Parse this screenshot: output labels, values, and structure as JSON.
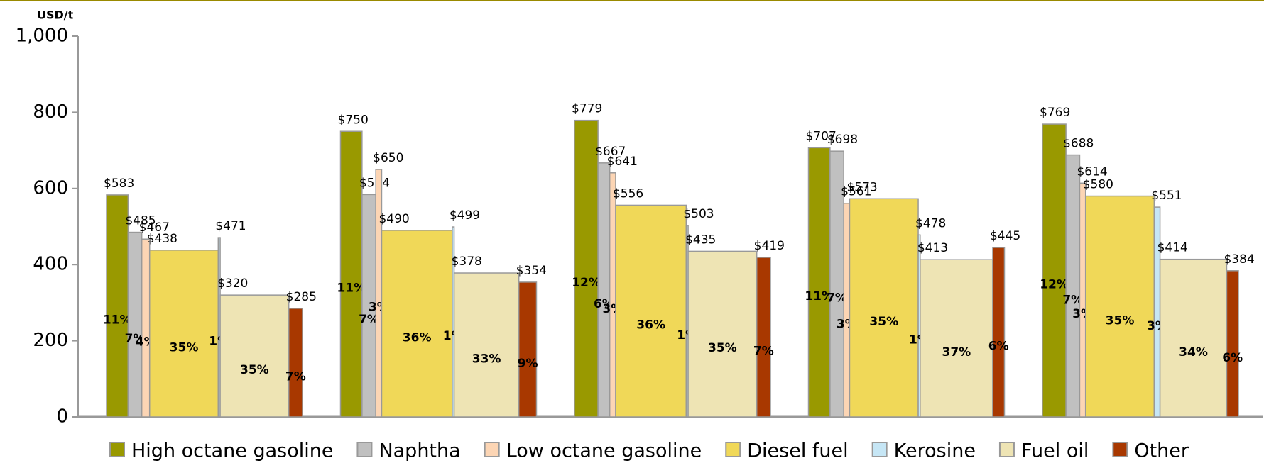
{
  "chart_data": {
    "type": "variable_width_bar",
    "y_label": "USD/t",
    "categories": [
      null,
      null,
      null,
      null,
      null
    ],
    "ylim": [
      0,
      1000
    ],
    "yticks": [
      0,
      200,
      400,
      600,
      800,
      {
        "value": 1000,
        "label": "1,000"
      }
    ],
    "series": [
      {
        "name": "High octane gasoline",
        "color": "#999900",
        "values": [
          583,
          750,
          779,
          707,
          769
        ],
        "value_labels": [
          "$583",
          "$750",
          "$779",
          "$707",
          "$769"
        ],
        "shares": [
          11,
          11,
          12,
          11,
          12
        ],
        "share_labels": [
          "11%",
          "11%",
          "12%",
          "11%",
          "12%"
        ]
      },
      {
        "name": "Naphtha",
        "color": "#c0c0c0",
        "values": [
          485,
          584,
          667,
          698,
          688
        ],
        "value_labels": [
          "$485",
          "$584",
          "$667",
          "$698",
          "$688"
        ],
        "shares": [
          7,
          7,
          6,
          7,
          7
        ],
        "share_labels": [
          "7%",
          "7%",
          "6%",
          "7%",
          "7%"
        ]
      },
      {
        "name": "Low octane gasoline",
        "color": "#fcd5b4",
        "values": [
          467,
          650,
          641,
          561,
          614
        ],
        "value_labels": [
          "$467",
          "$650",
          "$641",
          "$561",
          "$614"
        ],
        "shares": [
          4,
          3,
          3,
          3,
          3
        ],
        "share_labels": [
          "4%",
          "3%",
          "3%",
          "3%",
          "3%"
        ]
      },
      {
        "name": "Diesel fuel",
        "color": "#f0d858",
        "values": [
          438,
          490,
          556,
          573,
          580
        ],
        "value_labels": [
          "$438",
          "$490",
          "$556",
          "$573",
          "$580"
        ],
        "shares": [
          35,
          36,
          36,
          35,
          35
        ],
        "share_labels": [
          "35%",
          "36%",
          "36%",
          "35%",
          "35%"
        ]
      },
      {
        "name": "Kerosine",
        "color": "#c6e6f5",
        "values": [
          471,
          499,
          503,
          478,
          551
        ],
        "value_labels": [
          "$471",
          "$499",
          "$503",
          "$478",
          "$551"
        ],
        "shares": [
          1,
          1,
          1,
          1,
          3
        ],
        "share_labels": [
          "1%",
          "1%",
          "1%",
          "1%",
          "3%"
        ]
      },
      {
        "name": "Fuel oil",
        "color": "#eee4b4",
        "values": [
          320,
          378,
          435,
          413,
          414
        ],
        "value_labels": [
          "$320",
          "$378",
          "$435",
          "$413",
          "$414"
        ],
        "shares": [
          35,
          33,
          35,
          37,
          34
        ],
        "share_labels": [
          "35%",
          "33%",
          "35%",
          "37%",
          "34%"
        ]
      },
      {
        "name": "Other",
        "color": "#a83800",
        "values": [
          285,
          354,
          419,
          445,
          384
        ],
        "value_labels": [
          "$285",
          "$354",
          "$419",
          "$445",
          "$384"
        ],
        "shares": [
          7,
          9,
          7,
          6,
          6
        ],
        "share_labels": [
          "7%",
          "9%",
          "7%",
          "6%",
          "6%"
        ]
      }
    ]
  }
}
